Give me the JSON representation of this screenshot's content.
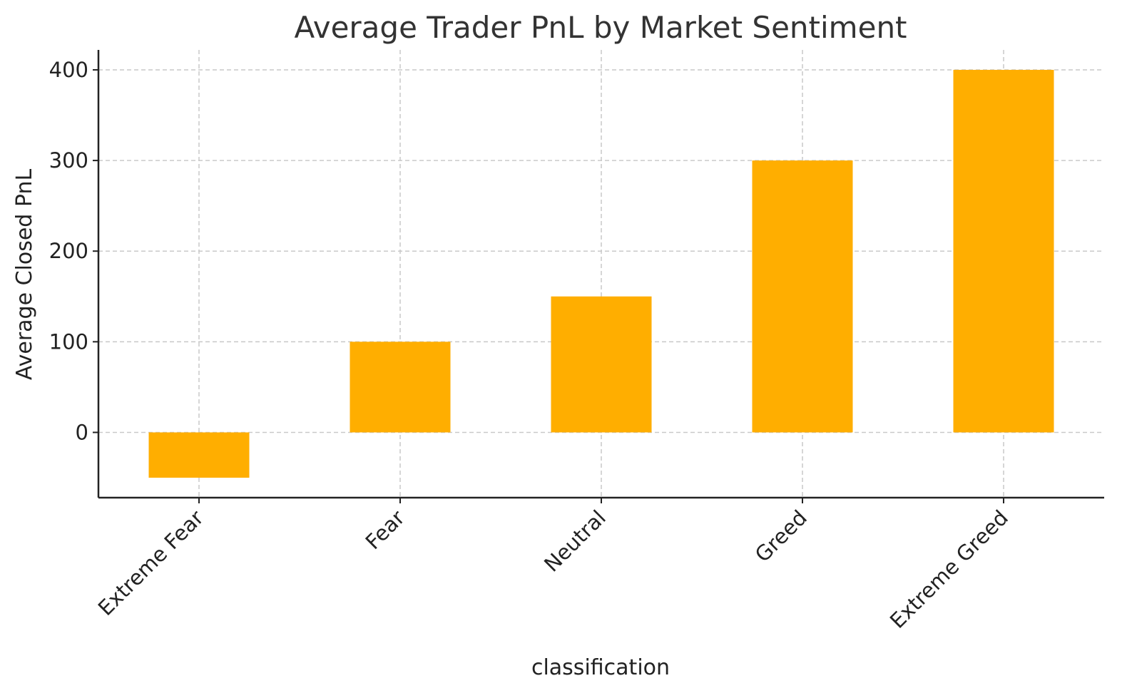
{
  "chart_data": {
    "type": "bar",
    "title": "Average Trader PnL by Market Sentiment",
    "xlabel": "classification",
    "ylabel": "Average Closed PnL",
    "categories": [
      "Extreme Fear",
      "Fear",
      "Neutral",
      "Greed",
      "Extreme Greed"
    ],
    "values": [
      -50,
      100,
      150,
      300,
      400
    ],
    "yticks": [
      0,
      100,
      200,
      300,
      400
    ],
    "ylim": [
      -72,
      422
    ],
    "grid": true,
    "bar_color": "#FFAE00"
  }
}
